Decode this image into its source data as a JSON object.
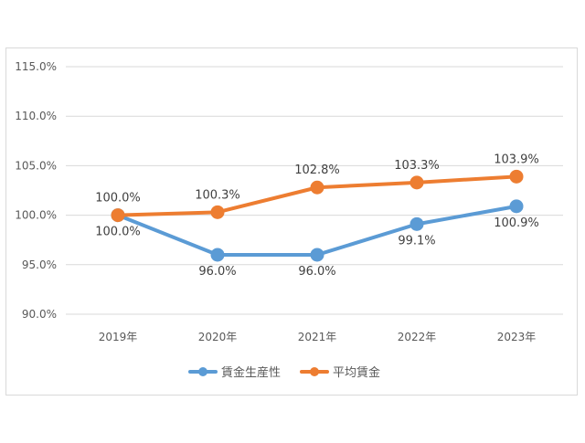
{
  "chart_data": {
    "type": "line",
    "categories": [
      "2019年",
      "2020年",
      "2021年",
      "2022年",
      "2023年"
    ],
    "series": [
      {
        "name": "賃金生産性",
        "values": [
          100.0,
          96.0,
          96.0,
          99.1,
          100.9
        ],
        "labels": [
          "100.0%",
          "96.0%",
          "96.0%",
          "99.1%",
          "100.9%"
        ],
        "color": "#5b9bd5"
      },
      {
        "name": "平均賃金",
        "values": [
          100.0,
          100.3,
          102.8,
          103.3,
          103.9
        ],
        "labels": [
          "100.0%",
          "100.3%",
          "102.8%",
          "103.3%",
          "103.9%"
        ],
        "color": "#ed7d31"
      }
    ],
    "y_ticks": [
      "90.0%",
      "95.0%",
      "100.0%",
      "105.0%",
      "110.0%",
      "115.0%"
    ],
    "ylim": [
      90,
      115
    ],
    "grid": true,
    "legend": "bottom",
    "title": "",
    "xlabel": "",
    "ylabel": ""
  }
}
